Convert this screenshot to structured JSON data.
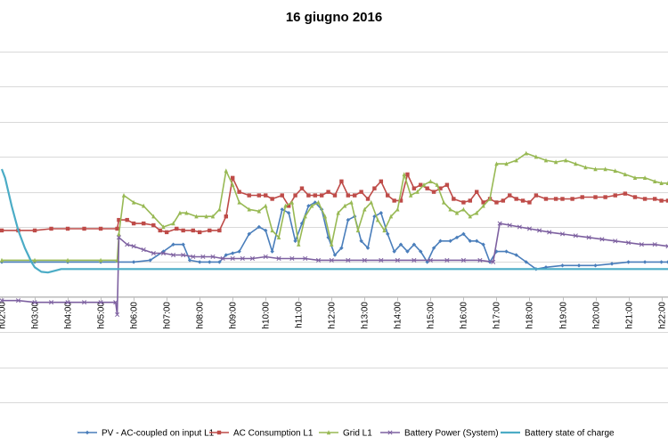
{
  "chart_data": {
    "type": "line",
    "title": "16 giugno 2016",
    "xlabel": "",
    "ylabel": "",
    "grid": true,
    "legend_position": "bottom",
    "x_ticks": [
      "h02:00",
      "h03:00",
      "h04:00",
      "h05:00",
      "h06:00",
      "h07:00",
      "h08:00",
      "h09:00",
      "h10:00",
      "h11:00",
      "h12:00",
      "h13:00",
      "h14:00",
      "h15:00",
      "h16:00",
      "h17:00",
      "h18:00",
      "h19:00",
      "h20:00",
      "h21:00",
      "h22:00"
    ],
    "xlim": [
      2.0,
      22.2
    ],
    "ylim": [
      -4,
      6
    ],
    "gridlines_y": [
      -4,
      -3,
      -2,
      -1,
      0,
      1,
      2,
      3,
      4,
      5,
      6
    ],
    "zero_line": 0,
    "series": [
      {
        "name": "PV - AC-coupled on input L1",
        "color": "#4a7ebb",
        "marker": "diamond",
        "points": [
          [
            2.0,
            0.0
          ],
          [
            3.0,
            0.0
          ],
          [
            4.0,
            0.0
          ],
          [
            5.0,
            0.0
          ],
          [
            6.0,
            0.0
          ],
          [
            6.5,
            0.05
          ],
          [
            6.9,
            0.3
          ],
          [
            7.2,
            0.5
          ],
          [
            7.5,
            0.5
          ],
          [
            7.7,
            0.05
          ],
          [
            8.0,
            0.0
          ],
          [
            8.3,
            0.0
          ],
          [
            8.6,
            0.0
          ],
          [
            8.8,
            0.2
          ],
          [
            9.0,
            0.25
          ],
          [
            9.2,
            0.3
          ],
          [
            9.5,
            0.8
          ],
          [
            9.8,
            1.0
          ],
          [
            10.0,
            0.9
          ],
          [
            10.2,
            0.3
          ],
          [
            10.5,
            1.5
          ],
          [
            10.7,
            1.4
          ],
          [
            10.9,
            0.6
          ],
          [
            11.1,
            1.1
          ],
          [
            11.3,
            1.6
          ],
          [
            11.5,
            1.7
          ],
          [
            11.7,
            1.5
          ],
          [
            11.9,
            0.7
          ],
          [
            12.1,
            0.2
          ],
          [
            12.3,
            0.4
          ],
          [
            12.5,
            1.2
          ],
          [
            12.7,
            1.3
          ],
          [
            12.9,
            0.6
          ],
          [
            13.1,
            0.4
          ],
          [
            13.3,
            1.3
          ],
          [
            13.5,
            1.4
          ],
          [
            13.7,
            0.8
          ],
          [
            13.9,
            0.3
          ],
          [
            14.1,
            0.5
          ],
          [
            14.3,
            0.3
          ],
          [
            14.5,
            0.5
          ],
          [
            14.7,
            0.3
          ],
          [
            14.9,
            0.0
          ],
          [
            15.1,
            0.4
          ],
          [
            15.3,
            0.6
          ],
          [
            15.6,
            0.6
          ],
          [
            15.8,
            0.7
          ],
          [
            16.0,
            0.8
          ],
          [
            16.2,
            0.6
          ],
          [
            16.4,
            0.6
          ],
          [
            16.6,
            0.5
          ],
          [
            16.8,
            0.0
          ],
          [
            17.0,
            0.3
          ],
          [
            17.3,
            0.3
          ],
          [
            17.6,
            0.2
          ],
          [
            17.9,
            0.0
          ],
          [
            18.2,
            -0.2
          ],
          [
            18.5,
            -0.15
          ],
          [
            19.0,
            -0.1
          ],
          [
            19.5,
            -0.1
          ],
          [
            20.0,
            -0.1
          ],
          [
            20.5,
            -0.05
          ],
          [
            21.0,
            0.0
          ],
          [
            21.5,
            0.0
          ],
          [
            22.0,
            0.0
          ],
          [
            22.2,
            0.0
          ]
        ]
      },
      {
        "name": "AC Consumption L1",
        "color": "#be4b48",
        "marker": "square",
        "points": [
          [
            2.0,
            0.9
          ],
          [
            2.5,
            0.9
          ],
          [
            3.0,
            0.9
          ],
          [
            3.5,
            0.95
          ],
          [
            4.0,
            0.95
          ],
          [
            4.5,
            0.95
          ],
          [
            5.0,
            0.95
          ],
          [
            5.5,
            0.95
          ],
          [
            5.55,
            1.2
          ],
          [
            5.8,
            1.2
          ],
          [
            6.0,
            1.1
          ],
          [
            6.3,
            1.1
          ],
          [
            6.6,
            1.05
          ],
          [
            6.8,
            0.9
          ],
          [
            7.0,
            0.85
          ],
          [
            7.3,
            0.95
          ],
          [
            7.5,
            0.9
          ],
          [
            7.8,
            0.9
          ],
          [
            8.0,
            0.85
          ],
          [
            8.3,
            0.9
          ],
          [
            8.6,
            0.9
          ],
          [
            8.8,
            1.3
          ],
          [
            9.0,
            2.4
          ],
          [
            9.2,
            2.0
          ],
          [
            9.5,
            1.9
          ],
          [
            9.8,
            1.9
          ],
          [
            10.0,
            1.9
          ],
          [
            10.2,
            1.8
          ],
          [
            10.5,
            1.9
          ],
          [
            10.7,
            1.6
          ],
          [
            10.9,
            1.9
          ],
          [
            11.1,
            2.1
          ],
          [
            11.3,
            1.9
          ],
          [
            11.5,
            1.9
          ],
          [
            11.7,
            1.9
          ],
          [
            11.9,
            2.0
          ],
          [
            12.1,
            1.9
          ],
          [
            12.3,
            2.3
          ],
          [
            12.5,
            1.9
          ],
          [
            12.7,
            1.9
          ],
          [
            12.9,
            2.0
          ],
          [
            13.1,
            1.8
          ],
          [
            13.3,
            2.1
          ],
          [
            13.5,
            2.3
          ],
          [
            13.7,
            1.9
          ],
          [
            13.9,
            1.75
          ],
          [
            14.1,
            1.75
          ],
          [
            14.3,
            2.5
          ],
          [
            14.5,
            2.1
          ],
          [
            14.7,
            2.2
          ],
          [
            14.9,
            2.1
          ],
          [
            15.1,
            2.0
          ],
          [
            15.3,
            2.1
          ],
          [
            15.5,
            2.2
          ],
          [
            15.7,
            1.8
          ],
          [
            16.0,
            1.7
          ],
          [
            16.2,
            1.75
          ],
          [
            16.4,
            2.0
          ],
          [
            16.6,
            1.7
          ],
          [
            16.8,
            1.8
          ],
          [
            17.0,
            1.7
          ],
          [
            17.2,
            1.75
          ],
          [
            17.4,
            1.9
          ],
          [
            17.6,
            1.8
          ],
          [
            17.8,
            1.75
          ],
          [
            18.0,
            1.7
          ],
          [
            18.2,
            1.9
          ],
          [
            18.5,
            1.8
          ],
          [
            18.8,
            1.8
          ],
          [
            19.0,
            1.8
          ],
          [
            19.3,
            1.8
          ],
          [
            19.6,
            1.85
          ],
          [
            20.0,
            1.85
          ],
          [
            20.3,
            1.85
          ],
          [
            20.6,
            1.9
          ],
          [
            20.9,
            1.95
          ],
          [
            21.2,
            1.85
          ],
          [
            21.5,
            1.8
          ],
          [
            21.8,
            1.8
          ],
          [
            22.0,
            1.75
          ],
          [
            22.2,
            1.75
          ]
        ]
      },
      {
        "name": "Grid L1",
        "color": "#98b954",
        "marker": "triangle",
        "points": [
          [
            2.0,
            0.05
          ],
          [
            3.0,
            0.05
          ],
          [
            4.0,
            0.05
          ],
          [
            5.0,
            0.05
          ],
          [
            5.5,
            0.05
          ],
          [
            5.55,
            0.8
          ],
          [
            5.7,
            1.9
          ],
          [
            6.0,
            1.7
          ],
          [
            6.3,
            1.6
          ],
          [
            6.6,
            1.3
          ],
          [
            6.9,
            1.0
          ],
          [
            7.2,
            1.1
          ],
          [
            7.4,
            1.4
          ],
          [
            7.6,
            1.4
          ],
          [
            7.9,
            1.3
          ],
          [
            8.2,
            1.3
          ],
          [
            8.4,
            1.3
          ],
          [
            8.6,
            1.5
          ],
          [
            8.8,
            2.6
          ],
          [
            9.0,
            2.2
          ],
          [
            9.2,
            1.7
          ],
          [
            9.5,
            1.5
          ],
          [
            9.8,
            1.45
          ],
          [
            10.0,
            1.6
          ],
          [
            10.2,
            0.9
          ],
          [
            10.4,
            0.7
          ],
          [
            10.6,
            1.6
          ],
          [
            10.8,
            1.7
          ],
          [
            11.0,
            0.5
          ],
          [
            11.2,
            1.3
          ],
          [
            11.4,
            1.6
          ],
          [
            11.6,
            1.7
          ],
          [
            11.8,
            1.3
          ],
          [
            12.0,
            0.5
          ],
          [
            12.2,
            1.4
          ],
          [
            12.4,
            1.6
          ],
          [
            12.6,
            1.7
          ],
          [
            12.8,
            0.9
          ],
          [
            13.0,
            1.5
          ],
          [
            13.2,
            1.7
          ],
          [
            13.4,
            1.2
          ],
          [
            13.6,
            0.9
          ],
          [
            13.8,
            1.3
          ],
          [
            14.0,
            1.5
          ],
          [
            14.2,
            2.5
          ],
          [
            14.4,
            1.9
          ],
          [
            14.6,
            2.0
          ],
          [
            14.8,
            2.2
          ],
          [
            15.0,
            2.3
          ],
          [
            15.2,
            2.2
          ],
          [
            15.4,
            1.7
          ],
          [
            15.6,
            1.5
          ],
          [
            15.8,
            1.4
          ],
          [
            16.0,
            1.5
          ],
          [
            16.2,
            1.3
          ],
          [
            16.4,
            1.4
          ],
          [
            16.6,
            1.6
          ],
          [
            16.8,
            1.8
          ],
          [
            17.0,
            2.8
          ],
          [
            17.3,
            2.8
          ],
          [
            17.6,
            2.9
          ],
          [
            17.9,
            3.1
          ],
          [
            18.2,
            3.0
          ],
          [
            18.5,
            2.9
          ],
          [
            18.8,
            2.85
          ],
          [
            19.1,
            2.9
          ],
          [
            19.4,
            2.8
          ],
          [
            19.7,
            2.7
          ],
          [
            20.0,
            2.65
          ],
          [
            20.3,
            2.65
          ],
          [
            20.6,
            2.6
          ],
          [
            20.9,
            2.5
          ],
          [
            21.2,
            2.4
          ],
          [
            21.5,
            2.4
          ],
          [
            21.8,
            2.3
          ],
          [
            22.0,
            2.25
          ],
          [
            22.2,
            2.25
          ]
        ]
      },
      {
        "name": "Battery Power (System)",
        "color": "#7d60a0",
        "marker": "x",
        "points": [
          [
            2.0,
            -1.1
          ],
          [
            2.5,
            -1.1
          ],
          [
            3.0,
            -1.15
          ],
          [
            3.5,
            -1.15
          ],
          [
            4.0,
            -1.15
          ],
          [
            4.5,
            -1.15
          ],
          [
            5.0,
            -1.15
          ],
          [
            5.45,
            -1.15
          ],
          [
            5.5,
            -1.5
          ],
          [
            5.55,
            0.7
          ],
          [
            5.8,
            0.5
          ],
          [
            6.0,
            0.45
          ],
          [
            6.3,
            0.35
          ],
          [
            6.6,
            0.25
          ],
          [
            6.9,
            0.25
          ],
          [
            7.2,
            0.2
          ],
          [
            7.5,
            0.2
          ],
          [
            7.8,
            0.15
          ],
          [
            8.1,
            0.15
          ],
          [
            8.4,
            0.15
          ],
          [
            8.7,
            0.1
          ],
          [
            9.0,
            0.1
          ],
          [
            9.3,
            0.1
          ],
          [
            9.6,
            0.1
          ],
          [
            10.0,
            0.15
          ],
          [
            10.4,
            0.1
          ],
          [
            10.8,
            0.1
          ],
          [
            11.2,
            0.1
          ],
          [
            11.6,
            0.05
          ],
          [
            12.0,
            0.05
          ],
          [
            12.5,
            0.05
          ],
          [
            13.0,
            0.05
          ],
          [
            13.5,
            0.05
          ],
          [
            14.0,
            0.05
          ],
          [
            14.5,
            0.05
          ],
          [
            15.0,
            0.05
          ],
          [
            15.5,
            0.05
          ],
          [
            16.0,
            0.05
          ],
          [
            16.5,
            0.05
          ],
          [
            16.9,
            0.0
          ],
          [
            17.1,
            1.1
          ],
          [
            17.4,
            1.05
          ],
          [
            17.7,
            1.0
          ],
          [
            18.0,
            0.95
          ],
          [
            18.3,
            0.9
          ],
          [
            18.6,
            0.85
          ],
          [
            19.0,
            0.8
          ],
          [
            19.4,
            0.75
          ],
          [
            19.8,
            0.7
          ],
          [
            20.2,
            0.65
          ],
          [
            20.6,
            0.6
          ],
          [
            21.0,
            0.55
          ],
          [
            21.4,
            0.5
          ],
          [
            21.8,
            0.5
          ],
          [
            22.2,
            0.45
          ]
        ]
      },
      {
        "name": "Battery state of charge",
        "color": "#4bacc6",
        "marker": "none",
        "points": [
          [
            2.0,
            2.65
          ],
          [
            2.1,
            2.4
          ],
          [
            2.3,
            1.6
          ],
          [
            2.5,
            0.9
          ],
          [
            2.7,
            0.4
          ],
          [
            2.9,
            0.0
          ],
          [
            3.0,
            -0.15
          ],
          [
            3.2,
            -0.28
          ],
          [
            3.4,
            -0.3
          ],
          [
            3.6,
            -0.25
          ],
          [
            3.8,
            -0.2
          ],
          [
            4.0,
            -0.2
          ],
          [
            4.5,
            -0.2
          ],
          [
            5.0,
            -0.2
          ],
          [
            6.0,
            -0.2
          ],
          [
            8.0,
            -0.2
          ],
          [
            10.0,
            -0.2
          ],
          [
            12.0,
            -0.2
          ],
          [
            14.0,
            -0.2
          ],
          [
            16.0,
            -0.2
          ],
          [
            18.0,
            -0.2
          ],
          [
            20.0,
            -0.2
          ],
          [
            22.0,
            -0.2
          ],
          [
            22.2,
            -0.2
          ]
        ]
      }
    ]
  }
}
